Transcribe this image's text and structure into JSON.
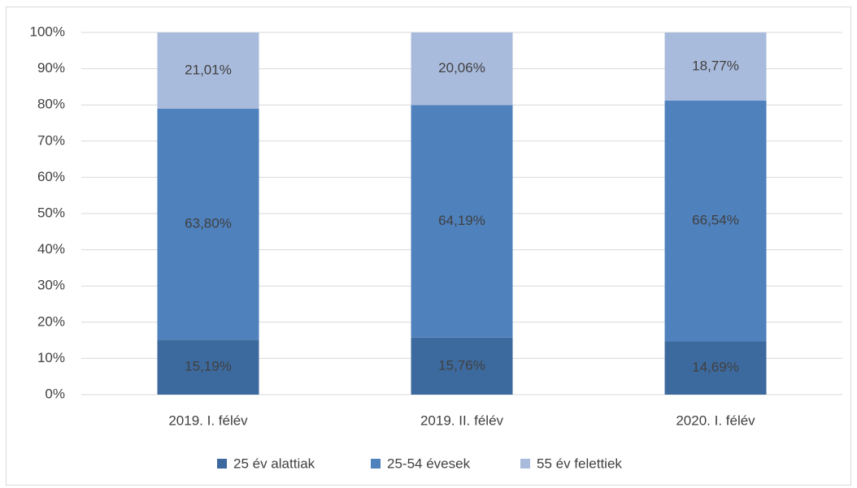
{
  "chart_data": {
    "type": "stacked_bar",
    "categories": [
      "2019. I. félév",
      "2019. II. félév",
      "2020. I. félév"
    ],
    "series": [
      {
        "name": "25 év alattiak",
        "color": "#3d6a9e",
        "values": [
          15.19,
          15.76,
          14.69
        ],
        "value_labels": [
          "15,19%",
          "15,76%",
          "14,69%"
        ]
      },
      {
        "name": "25-54 évesek",
        "color": "#4f81bd",
        "values": [
          63.8,
          64.19,
          66.54
        ],
        "value_labels": [
          "63,80%",
          "64,19%",
          "66,54%"
        ]
      },
      {
        "name": "55 év felettiek",
        "color": "#a9bbdc",
        "values": [
          21.01,
          20.06,
          18.77
        ],
        "value_labels": [
          "21,01%",
          "20,06%",
          "18,77%"
        ]
      }
    ],
    "ylim": [
      0,
      100
    ],
    "yticks": [
      {
        "value": 0,
        "label": "0%"
      },
      {
        "value": 10,
        "label": "10%"
      },
      {
        "value": 20,
        "label": "20%"
      },
      {
        "value": 30,
        "label": "30%"
      },
      {
        "value": 40,
        "label": "40%"
      },
      {
        "value": 50,
        "label": "50%"
      },
      {
        "value": 60,
        "label": "60%"
      },
      {
        "value": 70,
        "label": "70%"
      },
      {
        "value": 80,
        "label": "80%"
      },
      {
        "value": 90,
        "label": "90%"
      },
      {
        "value": 100,
        "label": "100%"
      }
    ],
    "grid": true,
    "legend": "bottom"
  }
}
